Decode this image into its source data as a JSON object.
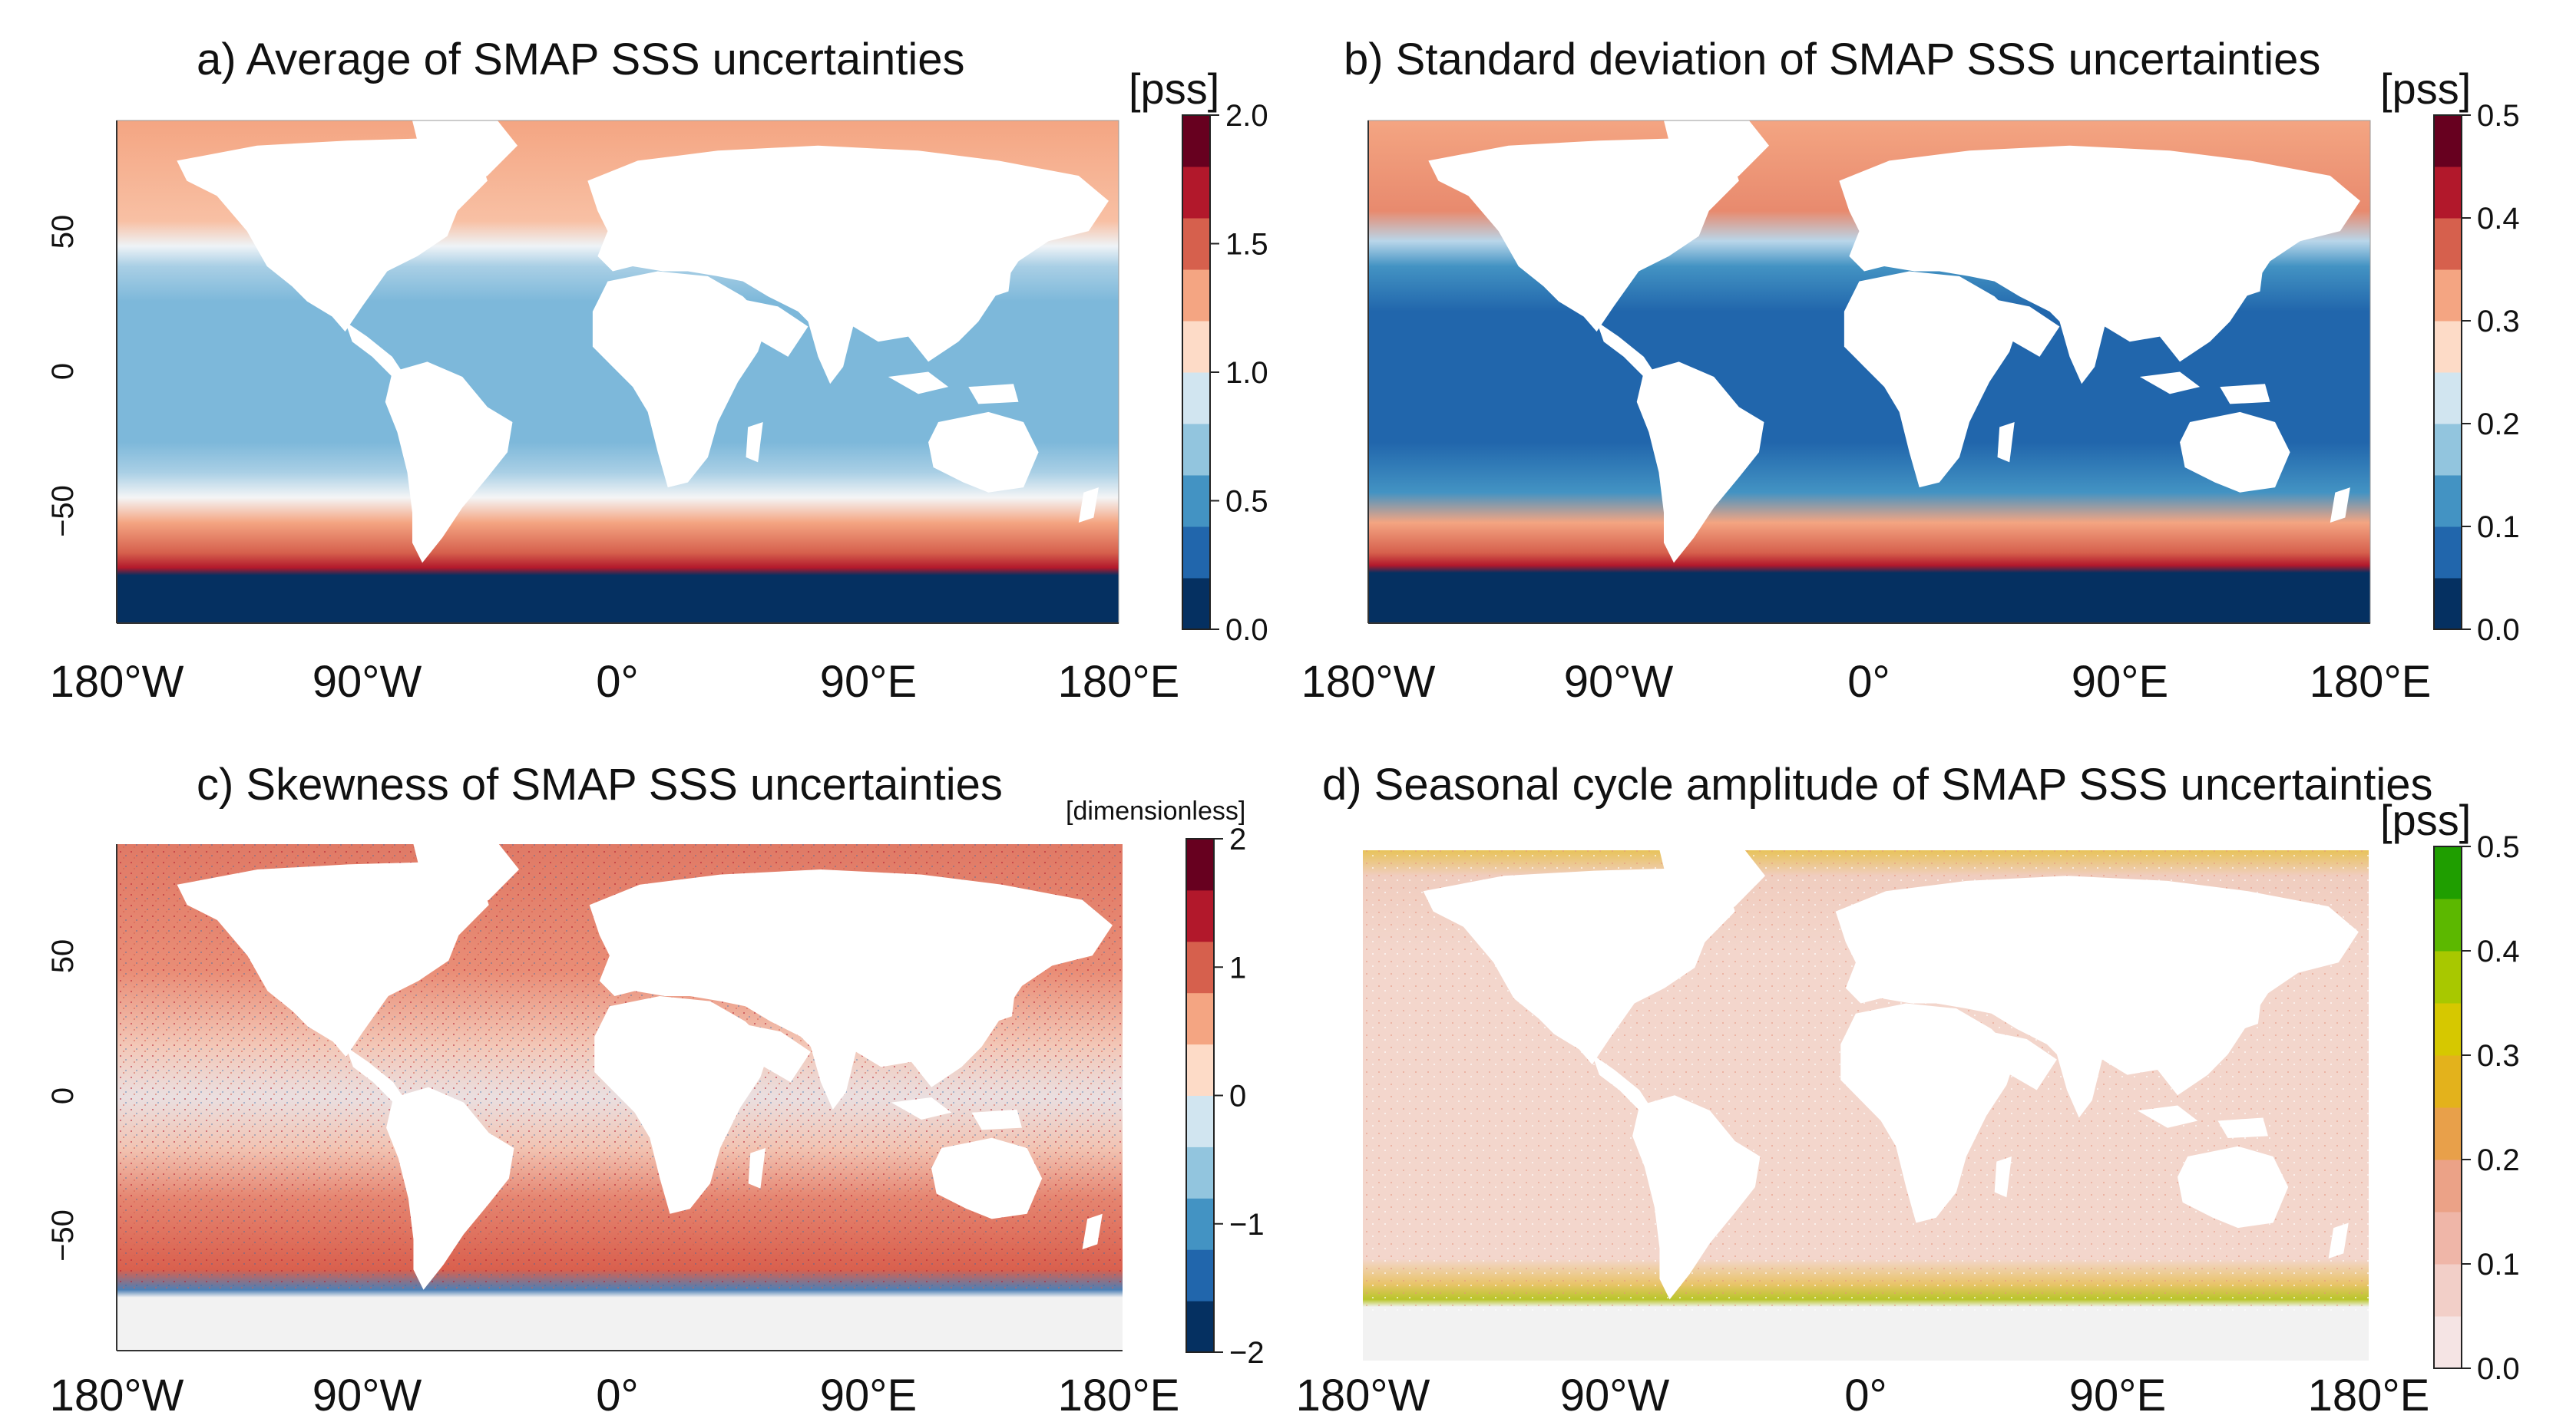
{
  "figure": {
    "x_tick_labels": [
      "180°W",
      "90°W",
      "0°",
      "90°E",
      "180°E"
    ],
    "y_tick_labels": [
      "50",
      "0",
      "−50"
    ],
    "ocean_colors": {
      "land": "#ffffff",
      "blank_background": "#f2f2f2"
    }
  },
  "panels": [
    {
      "id": "a",
      "title": "a) Average of SMAP SSS uncertainties",
      "unit": "[pss]",
      "colorbar": {
        "tick_labels": [
          "2.0",
          "1.5",
          "1.0",
          "0.5",
          "0.0"
        ],
        "colors": [
          "#053061",
          "#2166ac",
          "#4393c3",
          "#92c5de",
          "#d1e5f0",
          "#fddbc7",
          "#f4a582",
          "#d6604d",
          "#b2182b",
          "#67001f"
        ]
      }
    },
    {
      "id": "b",
      "title": "b) Standard deviation of SMAP SSS uncertainties",
      "unit": "[pss]",
      "colorbar": {
        "tick_labels": [
          "0.5",
          "0.4",
          "0.3",
          "0.2",
          "0.1",
          "0.0"
        ],
        "colors": [
          "#053061",
          "#2166ac",
          "#4393c3",
          "#92c5de",
          "#d1e5f0",
          "#fddbc7",
          "#f4a582",
          "#d6604d",
          "#b2182b",
          "#67001f"
        ]
      }
    },
    {
      "id": "c",
      "title": "c) Skewness of SMAP SSS uncertainties",
      "unit": "[dimensionless]",
      "colorbar": {
        "tick_labels": [
          "2",
          "1",
          "0",
          "−1",
          "−2"
        ],
        "colors": [
          "#053061",
          "#2166ac",
          "#4393c3",
          "#92c5de",
          "#d1e5f0",
          "#fddbc7",
          "#f4a582",
          "#d6604d",
          "#b2182b",
          "#67001f"
        ]
      }
    },
    {
      "id": "d",
      "title": "d) Seasonal cycle amplitude of SMAP SSS uncertainties",
      "unit": "[pss]",
      "colorbar": {
        "tick_labels": [
          "0.5",
          "0.4",
          "0.3",
          "0.2",
          "0.1",
          "0.0"
        ],
        "colors": [
          "#f5e4e4",
          "#f2cfc8",
          "#efb6a8",
          "#eba287",
          "#e8a04a",
          "#e3b21c",
          "#d6c800",
          "#a8c800",
          "#5cb800",
          "#1f9e00"
        ]
      }
    }
  ]
}
